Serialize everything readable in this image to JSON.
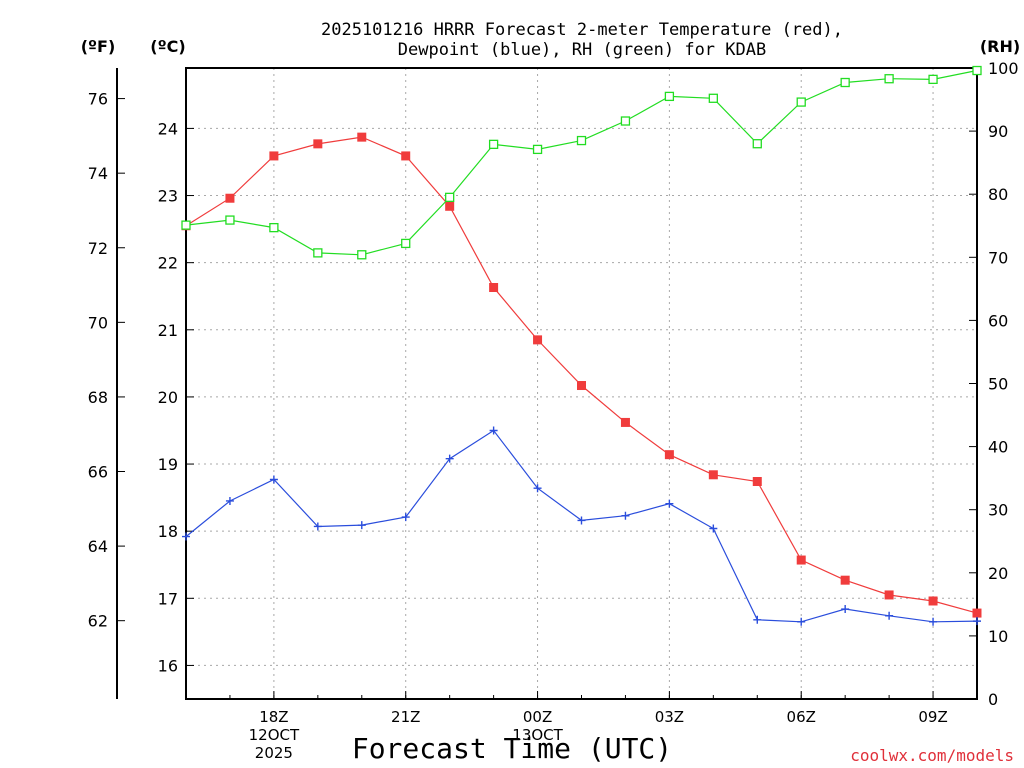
{
  "chart_data": {
    "type": "line",
    "title": "2025101216 HRRR Forecast 2-meter Temperature (red), Dewpoint (blue), RH (green) for KDAB",
    "title_line1": "2025101216 HRRR Forecast 2-meter Temperature (red),",
    "title_line2": "Dewpoint (blue), RH (green) for KDAB",
    "xlabel": "Forecast Time (UTC)",
    "credit": "coolwx.com/models",
    "units": {
      "fahrenheit": "(ºF)",
      "celsius": "(ºC)",
      "rh": "(RH)"
    },
    "x_hours": [
      16,
      17,
      18,
      19,
      20,
      21,
      22,
      23,
      0,
      1,
      2,
      3,
      4,
      5,
      6,
      7,
      8,
      9,
      10
    ],
    "x_range": [
      16,
      34
    ],
    "x_ticks": [
      {
        "hour": 18,
        "lines": [
          "18Z",
          "12OCT",
          "2025"
        ]
      },
      {
        "hour": 21,
        "lines": [
          "21Z"
        ]
      },
      {
        "hour": 24,
        "lines": [
          "00Z",
          "13OCT"
        ]
      },
      {
        "hour": 27,
        "lines": [
          "03Z"
        ]
      },
      {
        "hour": 30,
        "lines": [
          "06Z"
        ]
      },
      {
        "hour": 33,
        "lines": [
          "09Z"
        ]
      }
    ],
    "celsius_range": [
      15.5,
      24.9
    ],
    "celsius_ticks": [
      "16",
      "17",
      "18",
      "19",
      "20",
      "21",
      "22",
      "23",
      "24"
    ],
    "fahrenheit_ticks": [
      "62",
      "64",
      "66",
      "68",
      "70",
      "72",
      "74",
      "76"
    ],
    "rh_range": [
      0,
      100
    ],
    "rh_ticks": [
      "0",
      "10",
      "20",
      "30",
      "40",
      "50",
      "60",
      "70",
      "80",
      "90",
      "100"
    ],
    "series": [
      {
        "name": "Temperature",
        "color": "#f03c3c",
        "unit": "C",
        "marker": "filled-square",
        "values": [
          22.55,
          22.96,
          23.59,
          23.77,
          23.87,
          23.59,
          22.84,
          21.63,
          20.85,
          20.17,
          19.62,
          19.14,
          18.84,
          18.74,
          17.57,
          17.27,
          17.05,
          16.96,
          16.78
        ]
      },
      {
        "name": "Dewpoint",
        "color": "#2a4ddc",
        "unit": "C",
        "marker": "plus",
        "values": [
          17.92,
          18.45,
          18.77,
          18.07,
          18.09,
          18.21,
          19.08,
          19.5,
          18.64,
          18.16,
          18.23,
          18.41,
          18.04,
          16.68,
          16.65,
          16.84,
          16.74,
          16.65,
          16.66
        ]
      },
      {
        "name": "Relative Humidity",
        "color": "#22dd22",
        "unit": "%",
        "marker": "open-square",
        "values": [
          75.1,
          75.9,
          74.7,
          70.7,
          70.4,
          72.2,
          79.5,
          87.9,
          87.1,
          88.5,
          91.6,
          95.5,
          95.2,
          88.0,
          94.6,
          97.7,
          98.3,
          98.2,
          99.6
        ]
      }
    ]
  }
}
